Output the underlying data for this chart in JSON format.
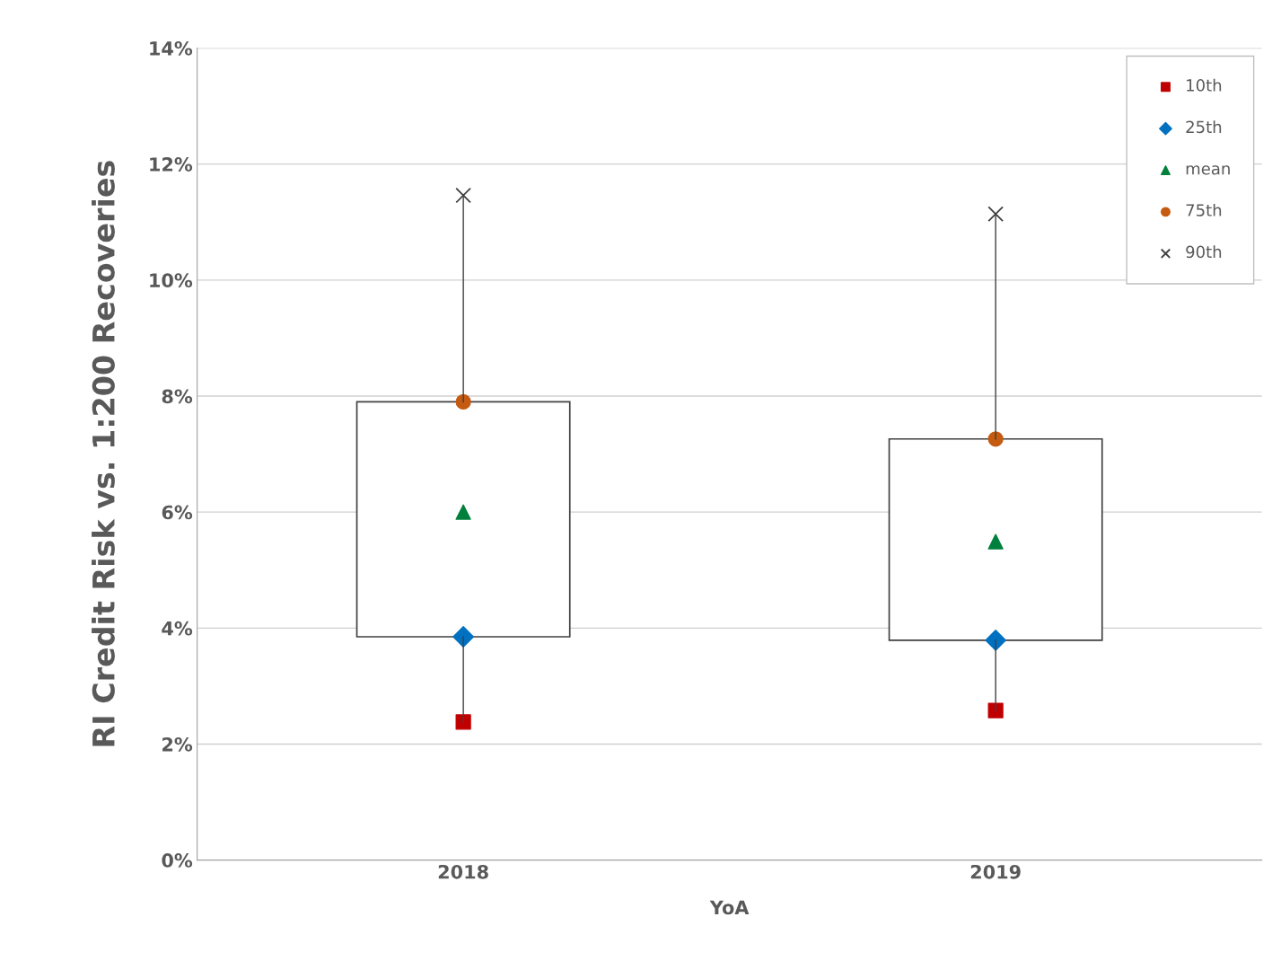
{
  "chart_data": {
    "type": "box",
    "xlabel": "YoA",
    "ylabel": "RI Credit Risk vs. 1:200 Recoveries",
    "categories": [
      "2018",
      "2019"
    ],
    "boxes": [
      {
        "low": 2.38,
        "q1": 3.85,
        "q3": 7.9,
        "high": 11.46
      },
      {
        "low": 2.58,
        "q1": 3.79,
        "q3": 7.26,
        "high": 11.14
      }
    ],
    "series": [
      {
        "name": "10th",
        "type": "scatter",
        "marker": "square",
        "color": "#c00000",
        "values": [
          2.38,
          2.58
        ]
      },
      {
        "name": "25th",
        "type": "scatter",
        "marker": "diamond",
        "color": "#0070c0",
        "values": [
          3.85,
          3.79
        ]
      },
      {
        "name": "mean",
        "type": "scatter",
        "marker": "triangle",
        "color": "#00803c",
        "values": [
          6.0,
          5.49
        ]
      },
      {
        "name": "75th",
        "type": "scatter",
        "marker": "circle",
        "color": "#c55a11",
        "values": [
          7.9,
          7.26
        ]
      },
      {
        "name": "90th",
        "type": "scatter",
        "marker": "cross",
        "color": "#404040",
        "values": [
          11.46,
          11.14
        ]
      }
    ],
    "ylim": [
      0,
      14
    ],
    "yticks": [
      {
        "value": 0,
        "label": "0%"
      },
      {
        "value": 2,
        "label": "2%"
      },
      {
        "value": 4,
        "label": "4%"
      },
      {
        "value": 6,
        "label": "6%"
      },
      {
        "value": 8,
        "label": "8%"
      },
      {
        "value": 10,
        "label": "10%"
      },
      {
        "value": 12,
        "label": "12%"
      },
      {
        "value": 14,
        "label": "14%"
      }
    ],
    "grid": "y",
    "legend": "top right"
  }
}
